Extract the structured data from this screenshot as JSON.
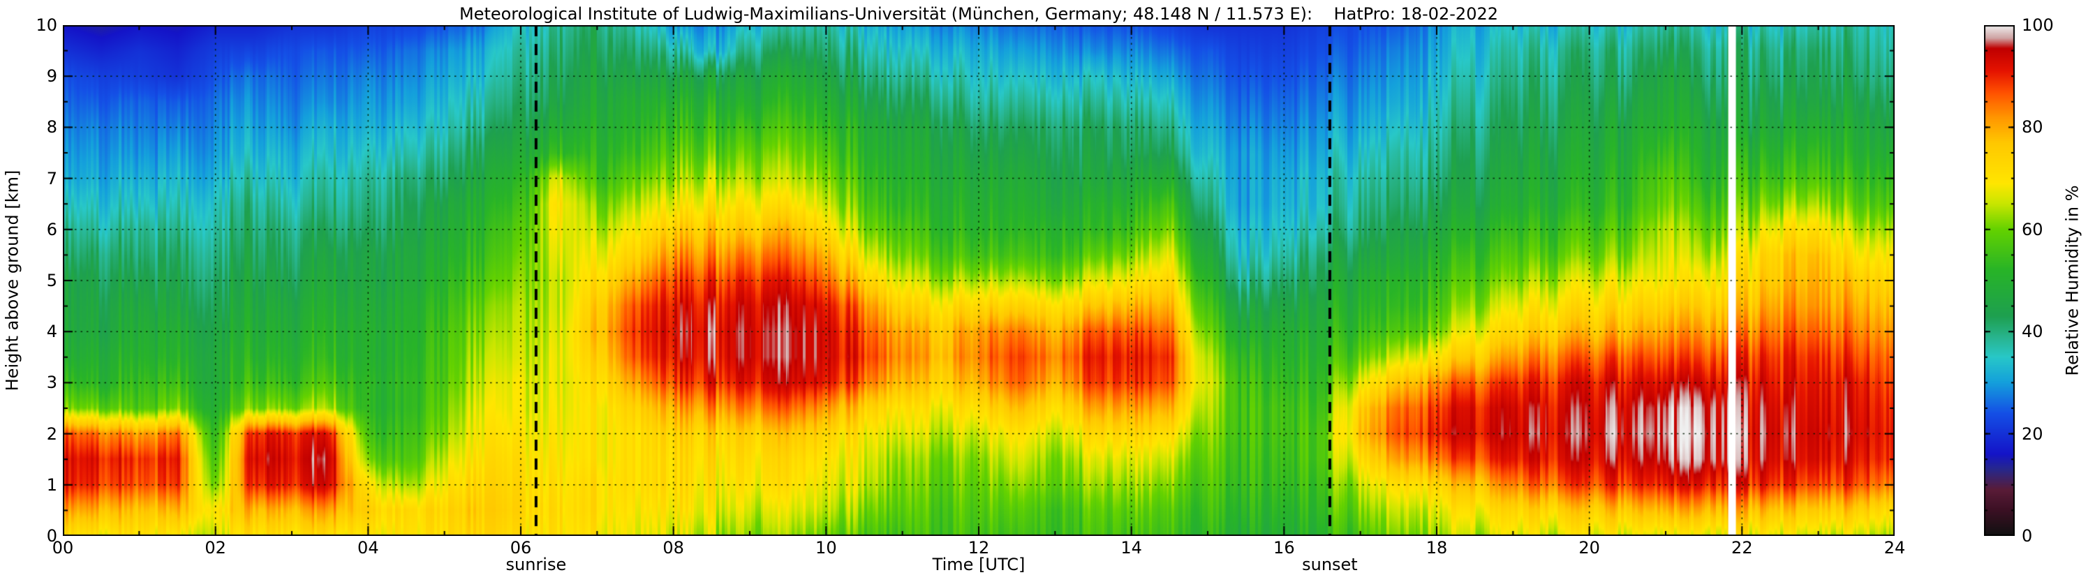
{
  "title": "Meteorological Institute of Ludwig-Maximilians-Universität (München, Germany; 48.148 N / 11.573 E):    HatPro: 18-02-2022",
  "chart_data": {
    "type": "heatmap",
    "title": "Meteorological Institute of Ludwig-Maximilians-Universität (München, Germany; 48.148 N / 11.573 E):    HatPro: 18-02-2022",
    "xlabel": "Time [UTC]",
    "ylabel": "Height above ground [km]",
    "colorbar_label": "Relative Humidity in %",
    "x_range": [
      0,
      24
    ],
    "y_range": [
      0,
      10
    ],
    "value_range": [
      0,
      100
    ],
    "grid": true,
    "x_ticks": [
      {
        "value": 0,
        "label": "00"
      },
      {
        "value": 2,
        "label": "02"
      },
      {
        "value": 4,
        "label": "04"
      },
      {
        "value": 6,
        "label": "06"
      },
      {
        "value": 8,
        "label": "08"
      },
      {
        "value": 10,
        "label": "10"
      },
      {
        "value": 12,
        "label": "12"
      },
      {
        "value": 14,
        "label": "14"
      },
      {
        "value": 16,
        "label": "16"
      },
      {
        "value": 18,
        "label": "18"
      },
      {
        "value": 20,
        "label": "20"
      },
      {
        "value": 22,
        "label": "22"
      },
      {
        "value": 24,
        "label": "24"
      }
    ],
    "y_ticks": [
      {
        "value": 0,
        "label": "0"
      },
      {
        "value": 1,
        "label": "1"
      },
      {
        "value": 2,
        "label": "2"
      },
      {
        "value": 3,
        "label": "3"
      },
      {
        "value": 4,
        "label": "4"
      },
      {
        "value": 5,
        "label": "5"
      },
      {
        "value": 6,
        "label": "6"
      },
      {
        "value": 7,
        "label": "7"
      },
      {
        "value": 8,
        "label": "8"
      },
      {
        "value": 9,
        "label": "9"
      },
      {
        "value": 10,
        "label": "10"
      }
    ],
    "colorbar_ticks": [
      {
        "value": 0,
        "label": "0"
      },
      {
        "value": 20,
        "label": "20"
      },
      {
        "value": 40,
        "label": "40"
      },
      {
        "value": 60,
        "label": "60"
      },
      {
        "value": 80,
        "label": "80"
      },
      {
        "value": 100,
        "label": "100"
      }
    ],
    "annotations": [
      {
        "type": "vline",
        "x": 6.2,
        "style": "dashed",
        "color": "#000000",
        "label": "sunrise"
      },
      {
        "type": "vline",
        "x": 16.6,
        "style": "dashed",
        "color": "#000000",
        "label": "sunset"
      }
    ],
    "data_gaps": [
      {
        "start": 21.82,
        "end": 21.92
      }
    ],
    "colormap_stops": [
      [
        0.0,
        "#111111"
      ],
      [
        0.05,
        "#3c1024"
      ],
      [
        0.09,
        "#5a1c38"
      ],
      [
        0.13,
        "#28288c"
      ],
      [
        0.16,
        "#1414c8"
      ],
      [
        0.24,
        "#1450e6"
      ],
      [
        0.3,
        "#14a0dc"
      ],
      [
        0.35,
        "#28c8c8"
      ],
      [
        0.39,
        "#28b48c"
      ],
      [
        0.43,
        "#1ea050"
      ],
      [
        0.52,
        "#28b428"
      ],
      [
        0.6,
        "#64d200"
      ],
      [
        0.65,
        "#c8e600"
      ],
      [
        0.69,
        "#ffe600"
      ],
      [
        0.77,
        "#ffc800"
      ],
      [
        0.82,
        "#ff9600"
      ],
      [
        0.87,
        "#ff5000"
      ],
      [
        0.91,
        "#e61400"
      ],
      [
        0.955,
        "#c00000"
      ],
      [
        0.975,
        "#cfa3a3"
      ],
      [
        1.0,
        "#efefef"
      ]
    ],
    "x_hours_start": 0,
    "x_hours_step": 0.5,
    "y_km_start": 0,
    "y_km_step": 0.5,
    "values_note": "relative humidity %, one array per half-hour time step, heights 0 to 10 km bottom-to-top at 0.5 km steps",
    "values_by_time": [
      [
        72,
        82,
        92,
        93,
        88,
        62,
        55,
        50,
        48,
        47,
        46,
        42,
        40,
        36,
        32,
        30,
        28,
        26,
        24,
        20,
        16
      ],
      [
        70,
        80,
        90,
        92,
        85,
        60,
        52,
        50,
        47,
        46,
        44,
        42,
        38,
        35,
        32,
        30,
        28,
        25,
        22,
        18,
        14
      ],
      [
        72,
        78,
        88,
        90,
        82,
        58,
        55,
        52,
        50,
        48,
        45,
        42,
        40,
        36,
        33,
        30,
        28,
        26,
        22,
        20,
        16
      ],
      [
        70,
        80,
        90,
        92,
        86,
        62,
        56,
        52,
        50,
        47,
        45,
        43,
        40,
        37,
        34,
        31,
        28,
        25,
        20,
        18,
        15
      ],
      [
        68,
        72,
        62,
        58,
        55,
        52,
        50,
        50,
        48,
        46,
        44,
        42,
        40,
        38,
        35,
        32,
        30,
        28,
        25,
        22,
        18
      ],
      [
        70,
        78,
        90,
        93,
        90,
        60,
        54,
        50,
        48,
        46,
        44,
        42,
        40,
        38,
        35,
        32,
        30,
        28,
        26,
        22,
        18
      ],
      [
        72,
        80,
        92,
        94,
        92,
        62,
        55,
        52,
        50,
        48,
        45,
        43,
        41,
        38,
        35,
        33,
        30,
        28,
        26,
        24,
        20
      ],
      [
        70,
        80,
        92,
        94,
        90,
        62,
        56,
        52,
        50,
        48,
        46,
        44,
        41,
        38,
        36,
        33,
        31,
        28,
        26,
        24,
        20
      ],
      [
        70,
        75,
        70,
        60,
        55,
        52,
        52,
        50,
        50,
        48,
        46,
        45,
        42,
        40,
        38,
        35,
        32,
        30,
        28,
        25,
        22
      ],
      [
        70,
        72,
        62,
        56,
        54,
        52,
        52,
        51,
        50,
        49,
        47,
        46,
        44,
        42,
        40,
        36,
        33,
        30,
        28,
        26,
        22
      ],
      [
        70,
        72,
        68,
        64,
        60,
        58,
        56,
        55,
        54,
        52,
        50,
        48,
        46,
        44,
        40,
        37,
        34,
        32,
        30,
        28,
        24
      ],
      [
        72,
        74,
        72,
        70,
        68,
        66,
        64,
        62,
        60,
        58,
        55,
        52,
        50,
        48,
        45,
        42,
        38,
        35,
        32,
        30,
        26
      ],
      [
        72,
        74,
        73,
        72,
        70,
        68,
        68,
        66,
        65,
        64,
        62,
        60,
        58,
        55,
        52,
        48,
        45,
        42,
        40,
        38,
        35
      ],
      [
        72,
        73,
        72,
        71,
        70,
        69,
        68,
        68,
        67,
        66,
        66,
        68,
        70,
        72,
        68,
        55,
        50,
        46,
        44,
        42,
        40
      ],
      [
        70,
        72,
        72,
        70,
        70,
        70,
        72,
        75,
        78,
        76,
        72,
        68,
        64,
        60,
        55,
        52,
        50,
        48,
        46,
        44,
        42
      ],
      [
        68,
        70,
        72,
        72,
        72,
        75,
        82,
        88,
        90,
        88,
        82,
        75,
        70,
        65,
        60,
        55,
        52,
        50,
        46,
        42,
        38
      ],
      [
        66,
        70,
        72,
        72,
        74,
        80,
        88,
        92,
        93,
        92,
        88,
        82,
        75,
        68,
        62,
        58,
        54,
        50,
        45,
        38,
        30
      ],
      [
        64,
        68,
        70,
        72,
        74,
        82,
        90,
        93,
        94,
        92,
        88,
        82,
        76,
        70,
        64,
        58,
        54,
        50,
        45,
        32,
        28
      ],
      [
        62,
        66,
        70,
        72,
        75,
        84,
        92,
        95,
        95,
        94,
        90,
        84,
        76,
        70,
        64,
        60,
        55,
        50,
        46,
        40,
        34
      ],
      [
        62,
        66,
        70,
        72,
        76,
        85,
        93,
        95,
        95,
        94,
        90,
        84,
        78,
        70,
        64,
        60,
        56,
        52,
        48,
        42,
        36
      ],
      [
        60,
        65,
        68,
        70,
        74,
        82,
        92,
        94,
        94,
        92,
        86,
        80,
        72,
        66,
        62,
        58,
        54,
        50,
        46,
        42,
        38
      ],
      [
        58,
        62,
        66,
        68,
        70,
        76,
        86,
        90,
        88,
        84,
        76,
        68,
        62,
        58,
        55,
        52,
        50,
        46,
        42,
        38,
        34
      ],
      [
        55,
        58,
        60,
        62,
        66,
        70,
        78,
        82,
        80,
        74,
        66,
        60,
        56,
        52,
        50,
        48,
        46,
        42,
        38,
        34,
        30
      ],
      [
        55,
        56,
        58,
        60,
        64,
        68,
        74,
        78,
        76,
        70,
        62,
        56,
        52,
        50,
        48,
        46,
        44,
        40,
        36,
        32,
        28
      ],
      [
        56,
        58,
        60,
        62,
        66,
        72,
        80,
        84,
        82,
        74,
        64,
        56,
        52,
        50,
        48,
        45,
        42,
        38,
        35,
        32,
        28
      ],
      [
        55,
        58,
        62,
        66,
        70,
        78,
        86,
        88,
        84,
        74,
        64,
        56,
        52,
        50,
        48,
        45,
        42,
        38,
        34,
        30,
        26
      ],
      [
        55,
        56,
        60,
        62,
        66,
        72,
        80,
        84,
        80,
        72,
        62,
        55,
        52,
        48,
        46,
        44,
        42,
        38,
        34,
        30,
        26
      ],
      [
        56,
        58,
        62,
        66,
        72,
        80,
        88,
        90,
        86,
        76,
        66,
        58,
        52,
        50,
        46,
        44,
        42,
        38,
        34,
        28,
        24
      ],
      [
        55,
        58,
        62,
        66,
        72,
        80,
        88,
        90,
        86,
        78,
        68,
        60,
        54,
        50,
        46,
        42,
        40,
        36,
        32,
        28,
        24
      ],
      [
        54,
        56,
        60,
        64,
        70,
        78,
        86,
        88,
        84,
        78,
        72,
        66,
        60,
        55,
        48,
        42,
        38,
        34,
        30,
        26,
        22
      ],
      [
        52,
        54,
        56,
        58,
        60,
        62,
        64,
        62,
        58,
        54,
        50,
        46,
        42,
        38,
        35,
        32,
        30,
        28,
        26,
        24,
        20
      ],
      [
        50,
        52,
        54,
        55,
        56,
        56,
        55,
        52,
        48,
        44,
        38,
        34,
        32,
        30,
        30,
        30,
        28,
        26,
        24,
        22,
        20
      ],
      [
        50,
        52,
        54,
        55,
        56,
        56,
        54,
        52,
        50,
        46,
        42,
        38,
        35,
        33,
        32,
        30,
        28,
        26,
        24,
        22,
        20
      ],
      [
        52,
        54,
        56,
        58,
        58,
        56,
        54,
        52,
        50,
        48,
        45,
        42,
        38,
        35,
        34,
        32,
        30,
        28,
        26,
        24,
        22
      ],
      [
        58,
        62,
        66,
        72,
        78,
        76,
        68,
        60,
        55,
        52,
        50,
        46,
        42,
        40,
        38,
        35,
        32,
        30,
        28,
        26,
        24
      ],
      [
        62,
        66,
        72,
        82,
        88,
        86,
        78,
        66,
        58,
        54,
        52,
        48,
        45,
        42,
        40,
        38,
        35,
        32,
        30,
        28,
        25
      ],
      [
        64,
        68,
        75,
        86,
        92,
        90,
        84,
        72,
        62,
        58,
        55,
        52,
        48,
        45,
        42,
        40,
        38,
        36,
        34,
        32,
        30
      ],
      [
        64,
        70,
        78,
        88,
        93,
        92,
        86,
        76,
        68,
        62,
        58,
        54,
        50,
        46,
        44,
        42,
        40,
        38,
        36,
        34,
        32
      ],
      [
        66,
        72,
        82,
        90,
        93,
        92,
        88,
        80,
        72,
        66,
        60,
        56,
        52,
        48,
        46,
        44,
        42,
        40,
        38,
        36,
        33
      ],
      [
        66,
        74,
        86,
        92,
        94,
        93,
        90,
        84,
        76,
        70,
        64,
        58,
        54,
        50,
        48,
        46,
        44,
        42,
        40,
        38,
        34
      ],
      [
        68,
        76,
        88,
        93,
        95,
        94,
        92,
        86,
        78,
        72,
        66,
        60,
        56,
        52,
        50,
        48,
        46,
        44,
        42,
        40,
        36
      ],
      [
        68,
        78,
        90,
        95,
        97,
        96,
        93,
        88,
        80,
        74,
        68,
        62,
        58,
        54,
        52,
        50,
        48,
        45,
        42,
        40,
        36
      ],
      [
        68,
        80,
        92,
        97,
        99,
        98,
        94,
        88,
        82,
        76,
        70,
        68,
        66,
        62,
        60,
        56,
        52,
        50,
        48,
        44,
        40
      ],
      [
        68,
        80,
        92,
        98,
        99,
        98,
        94,
        88,
        82,
        76,
        70,
        64,
        60,
        56,
        52,
        50,
        48,
        45,
        42,
        40,
        36
      ],
      [
        68,
        78,
        90,
        94,
        95,
        94,
        92,
        88,
        82,
        76,
        72,
        68,
        62,
        58,
        54,
        50,
        46,
        44,
        42,
        40,
        36
      ],
      [
        68,
        78,
        90,
        94,
        95,
        94,
        92,
        90,
        86,
        82,
        78,
        76,
        70,
        62,
        56,
        52,
        48,
        45,
        42,
        40,
        36
      ],
      [
        66,
        76,
        88,
        93,
        94,
        93,
        92,
        90,
        86,
        82,
        80,
        78,
        72,
        64,
        58,
        54,
        50,
        46,
        44,
        42,
        38
      ],
      [
        66,
        76,
        88,
        92,
        94,
        93,
        92,
        88,
        84,
        80,
        76,
        70,
        64,
        58,
        54,
        50,
        48,
        45,
        42,
        40,
        38
      ],
      [
        66,
        74,
        86,
        92,
        93,
        92,
        90,
        88,
        84,
        80,
        76,
        72,
        66,
        60,
        56,
        52,
        48,
        45,
        42,
        40,
        38
      ]
    ]
  }
}
